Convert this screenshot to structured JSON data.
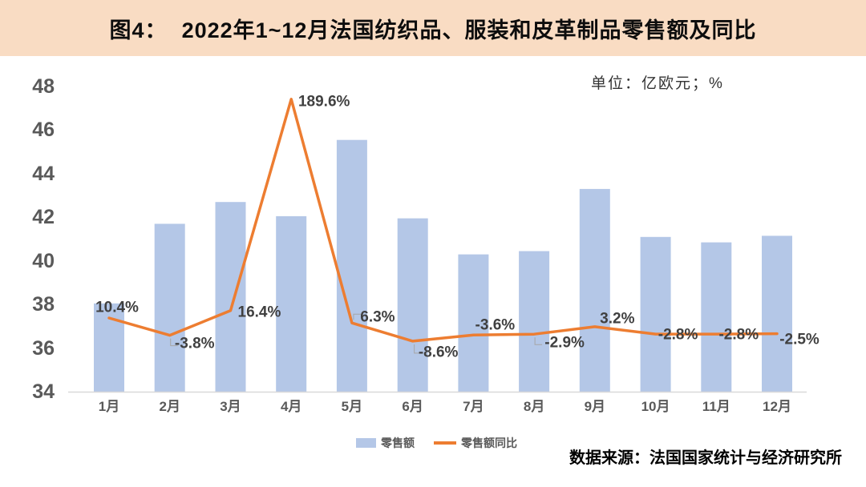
{
  "header": {
    "title_prefix": "图4：",
    "title": "2022年1~12月法国纺织品、服装和皮革制品零售额及同比"
  },
  "unit_label": "单位：亿欧元；%",
  "source": "数据来源：法国国家统计与经济研究所",
  "legend": {
    "items": [
      {
        "label": "零售额",
        "type": "bar"
      },
      {
        "label": "零售额同比",
        "type": "line"
      }
    ],
    "position": "bottom"
  },
  "colors": {
    "header_bg": "#f9dcc3",
    "bar": "#b4c7e7",
    "line": "#ed7d31",
    "data_label": "#404040",
    "axis_label": "#595959",
    "axis_line": "#d9d9d9",
    "leader_line": "#a6a6a6"
  },
  "chart_data": {
    "type": "bar",
    "subtype": "bar+line-combo",
    "title": "2022年1~12月法国纺织品、服装和皮革制品零售额及同比",
    "categories": [
      "1月",
      "2月",
      "3月",
      "4月",
      "5月",
      "6月",
      "7月",
      "8月",
      "9月",
      "10月",
      "11月",
      "12月"
    ],
    "series": [
      {
        "name": "零售额",
        "type": "bar",
        "axis": "left",
        "unit": "亿欧元",
        "values": [
          38.05,
          41.7,
          42.7,
          42.05,
          45.55,
          41.95,
          40.3,
          40.45,
          43.3,
          41.1,
          40.85,
          41.15
        ]
      },
      {
        "name": "零售额同比",
        "type": "line",
        "axis": "right",
        "unit": "%",
        "values": [
          10.4,
          -3.8,
          16.4,
          189.6,
          6.3,
          -8.6,
          -3.6,
          -2.9,
          3.2,
          -2.8,
          -2.8,
          -2.5
        ],
        "labels": [
          "10.4%",
          "-3.8%",
          "16.4%",
          "189.6%",
          "6.3%",
          "-8.6%",
          "-3.6%",
          "-2.9%",
          "3.2%",
          "-2.8%",
          "-2.8%",
          "-2.5%"
        ]
      }
    ],
    "left_axis": {
      "min": 34,
      "max": 48,
      "step": 2,
      "ticks": [
        34,
        36,
        38,
        40,
        42,
        44,
        46,
        48
      ]
    },
    "right_axis": {
      "min": -50,
      "max": 200,
      "visible": false
    },
    "grid": false,
    "legend_position": "bottom",
    "data_labels": "line-series-only"
  }
}
